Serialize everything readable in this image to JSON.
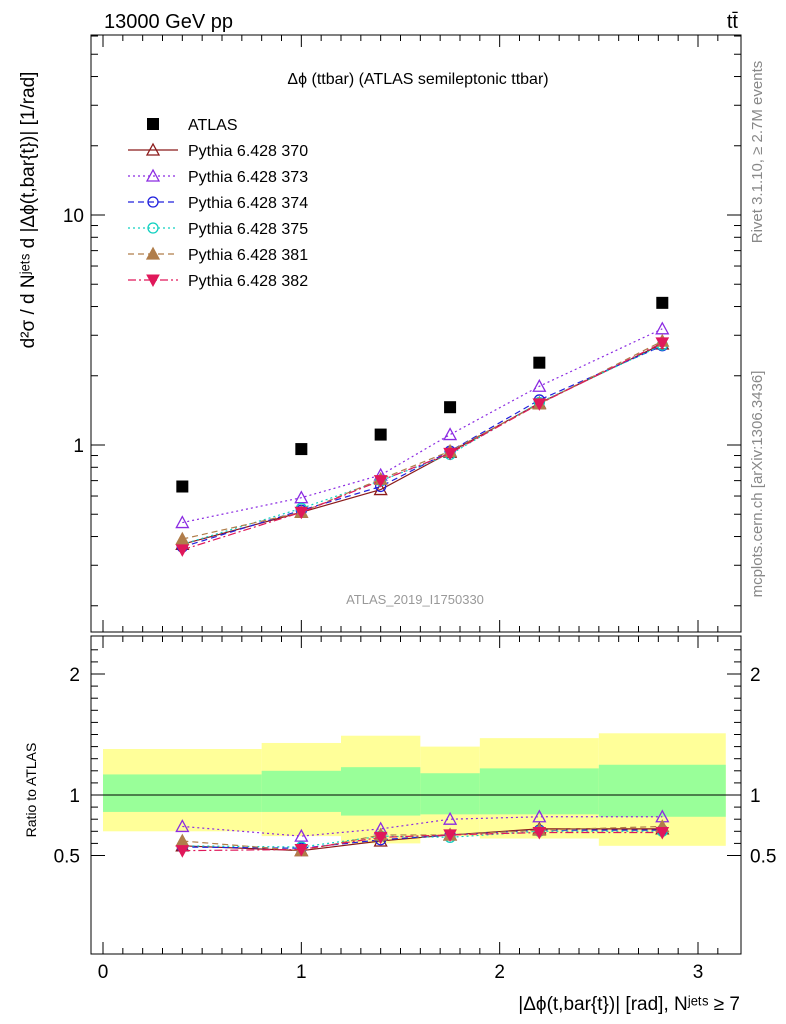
{
  "header": {
    "energy_label": "13000 GeV pp",
    "process_label": "tt̄"
  },
  "side_labels": {
    "rivet": "Rivet 3.1.10, ≥ 2.7M events",
    "source": "mcplots.cern.ch [arXiv:1306.3436]"
  },
  "watermark": "ATLAS_2019_I1750330",
  "chart_data": [
    {
      "type": "scatter",
      "title": "Δϕ (ttbar) (ATLAS semileptonic ttbar)",
      "ylabel": "d²σ / d Nʲᵉᵗˢ d |Δϕ(t,bar{t})| [1/rad]",
      "yscale": "log",
      "ylim": [
        0.17,
        60
      ],
      "yticks": [
        1,
        10
      ],
      "xlim": [
        -0.1,
        3.2
      ],
      "legend_position": "top-left",
      "x": [
        0.4,
        1.0,
        1.4,
        1.75,
        2.2,
        2.82
      ],
      "series": [
        {
          "name": "ATLAS",
          "color": "#000000",
          "marker": "square-filled",
          "line": "none",
          "values": [
            0.66,
            0.96,
            1.11,
            1.46,
            2.28,
            4.15
          ]
        },
        {
          "name": "Pythia 6.428 370",
          "color": "#8b1a1a",
          "marker": "triangle-open",
          "line": "solid",
          "values": [
            0.37,
            0.51,
            0.64,
            0.93,
            1.52,
            2.75
          ]
        },
        {
          "name": "Pythia 6.428 373",
          "color": "#8b2be2",
          "marker": "triangle-open",
          "line": "dotted",
          "values": [
            0.46,
            0.59,
            0.74,
            1.11,
            1.8,
            3.2
          ]
        },
        {
          "name": "Pythia 6.428 374",
          "color": "#2020dd",
          "marker": "circle-open",
          "line": "dashed",
          "values": [
            0.36,
            0.52,
            0.66,
            0.94,
            1.57,
            2.7
          ]
        },
        {
          "name": "Pythia 6.428 375",
          "color": "#10d0c0",
          "marker": "circle-open",
          "line": "dotted",
          "values": [
            0.37,
            0.53,
            0.7,
            0.91,
            1.53,
            2.72
          ]
        },
        {
          "name": "Pythia 6.428 381",
          "color": "#b07d4a",
          "marker": "triangle-filled",
          "line": "dashed",
          "values": [
            0.39,
            0.51,
            0.71,
            0.94,
            1.51,
            2.83
          ]
        },
        {
          "name": "Pythia 6.428 382",
          "color": "#e0185a",
          "marker": "triangle-down-filled",
          "line": "dashdot",
          "values": [
            0.35,
            0.51,
            0.7,
            0.92,
            1.51,
            2.78
          ]
        }
      ]
    },
    {
      "type": "scatter",
      "ylabel": "Ratio to ATLAS",
      "xlabel": "|Δϕ(t,bar{t})| [rad], Nʲᵉᵗˢ ≥ 7",
      "ylim": [
        0.4,
        2.35
      ],
      "yticks": [
        0.5,
        1,
        2
      ],
      "xlim": [
        -0.1,
        3.2
      ],
      "xticks": [
        0,
        1,
        2,
        3
      ],
      "bands": {
        "bins": [
          [
            0.0,
            0.8
          ],
          [
            0.8,
            1.2
          ],
          [
            1.2,
            1.6
          ],
          [
            1.6,
            1.9
          ],
          [
            1.9,
            2.5
          ],
          [
            2.5,
            3.14
          ]
        ],
        "green_low": [
          0.86,
          0.86,
          0.83,
          0.84,
          0.84,
          0.82
        ],
        "green_high": [
          1.17,
          1.2,
          1.23,
          1.18,
          1.22,
          1.25
        ],
        "yellow_low": [
          0.7,
          0.66,
          0.6,
          0.66,
          0.64,
          0.58
        ],
        "yellow_high": [
          1.38,
          1.43,
          1.49,
          1.4,
          1.47,
          1.51
        ],
        "green_color": "#99ff99",
        "yellow_color": "#ffff99"
      },
      "x": [
        0.4,
        1.0,
        1.4,
        1.75,
        2.2,
        2.82
      ],
      "series": [
        {
          "name": "Pythia 6.428 370",
          "color": "#8b1a1a",
          "marker": "triangle-open",
          "line": "solid",
          "values": [
            0.58,
            0.54,
            0.62,
            0.67,
            0.72,
            0.72
          ]
        },
        {
          "name": "Pythia 6.428 373",
          "color": "#8b2be2",
          "marker": "triangle-open",
          "line": "dotted",
          "values": [
            0.74,
            0.66,
            0.72,
            0.8,
            0.82,
            0.82
          ]
        },
        {
          "name": "Pythia 6.428 374",
          "color": "#2020dd",
          "marker": "circle-open",
          "line": "dashed",
          "values": [
            0.57,
            0.56,
            0.63,
            0.67,
            0.71,
            0.71
          ]
        },
        {
          "name": "Pythia 6.428 375",
          "color": "#10d0c0",
          "marker": "circle-open",
          "line": "dotted",
          "values": [
            0.58,
            0.57,
            0.66,
            0.65,
            0.7,
            0.7
          ]
        },
        {
          "name": "Pythia 6.428 381",
          "color": "#b07d4a",
          "marker": "triangle-filled",
          "line": "dashed",
          "values": [
            0.62,
            0.54,
            0.67,
            0.67,
            0.71,
            0.74
          ]
        },
        {
          "name": "Pythia 6.428 382",
          "color": "#e0185a",
          "marker": "triangle-down-filled",
          "line": "dashdot",
          "values": [
            0.54,
            0.55,
            0.65,
            0.67,
            0.69,
            0.69
          ]
        }
      ]
    }
  ]
}
